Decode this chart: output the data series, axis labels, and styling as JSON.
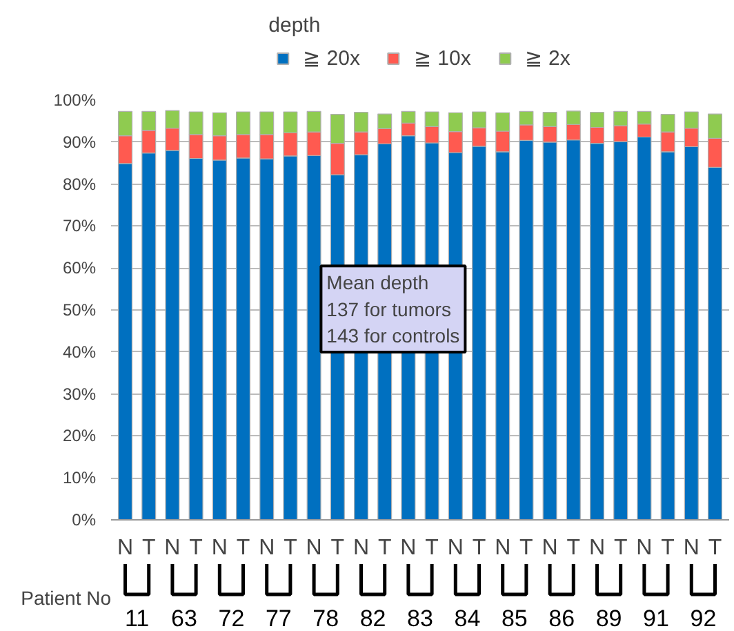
{
  "chart_data": {
    "type": "bar",
    "stacked": true,
    "legend_title": "depth",
    "legend": "top",
    "xlabel": "Patient No",
    "categories": [
      "N",
      "T",
      "N",
      "T",
      "N",
      "T",
      "N",
      "T",
      "N",
      "T",
      "N",
      "T",
      "N",
      "T",
      "N",
      "T",
      "N",
      "T",
      "N",
      "T",
      "N",
      "T",
      "N",
      "T",
      "N",
      "T"
    ],
    "series": [
      {
        "name": "≧ 20x",
        "color": "#0070c0",
        "values": [
          84.9,
          87.4,
          88.0,
          86.1,
          85.7,
          86.2,
          86.0,
          86.7,
          86.8,
          82.2,
          87.0,
          89.6,
          91.5,
          89.8,
          87.5,
          89.0,
          87.7,
          90.4,
          90.0,
          90.5,
          89.7,
          90.1,
          91.2,
          87.7,
          88.9,
          84.0
        ]
      },
      {
        "name": "≧ 10x",
        "color": "#ff5a50",
        "values": [
          6.6,
          5.4,
          5.3,
          5.7,
          5.8,
          5.6,
          5.8,
          5.5,
          5.6,
          7.5,
          5.4,
          3.6,
          3.0,
          3.9,
          5.0,
          4.4,
          4.9,
          3.7,
          3.7,
          3.7,
          3.8,
          3.8,
          3.1,
          4.7,
          4.4,
          6.9
        ]
      },
      {
        "name": "≧ 2x",
        "color": "#8fcb50",
        "values": [
          5.8,
          4.5,
          4.2,
          5.4,
          5.5,
          5.4,
          5.4,
          5.0,
          4.9,
          6.9,
          4.7,
          3.5,
          2.8,
          3.5,
          4.5,
          3.8,
          4.4,
          3.2,
          3.4,
          3.2,
          3.6,
          3.4,
          3.0,
          4.2,
          3.9,
          5.8
        ]
      }
    ],
    "ylim": [
      0,
      100
    ],
    "yticks": [
      {
        "value": 0,
        "label": "0%"
      },
      {
        "value": 10,
        "label": "10%"
      },
      {
        "value": 20,
        "label": "20%"
      },
      {
        "value": 30,
        "label": "30%"
      },
      {
        "value": 40,
        "label": "40%"
      },
      {
        "value": 50,
        "label": "50%"
      },
      {
        "value": 60,
        "label": "60%"
      },
      {
        "value": 70,
        "label": "70%"
      },
      {
        "value": 80,
        "label": "80%"
      },
      {
        "value": 90,
        "label": "90%"
      },
      {
        "value": 100,
        "label": "100%"
      }
    ],
    "grid": "y",
    "annotations": [
      "Mean depth\n137 for tumors\n143 for controls",
      "11",
      "63",
      "72",
      "77",
      "78",
      "82",
      "83",
      "84",
      "85",
      "86",
      "89",
      "91",
      "92"
    ]
  }
}
